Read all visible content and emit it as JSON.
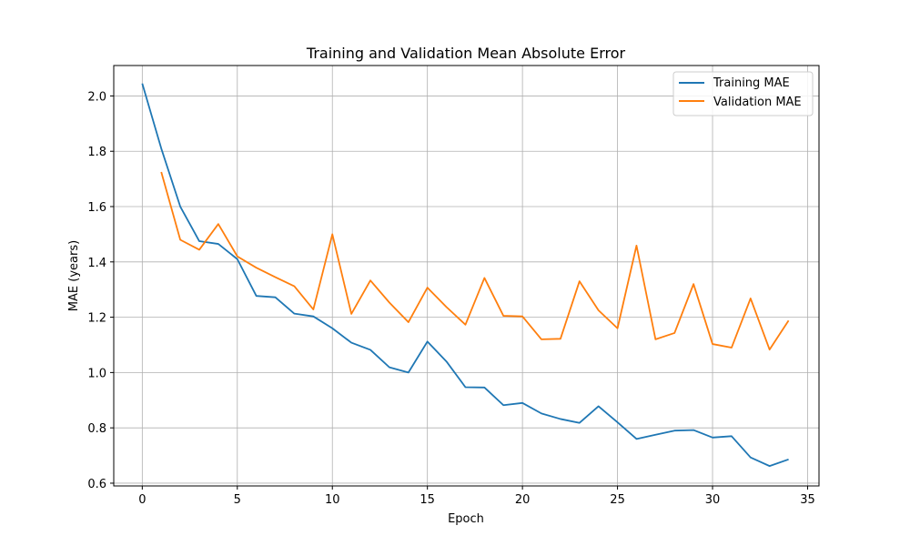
{
  "chart_data": {
    "type": "line",
    "title": "Training and Validation Mean Absolute Error",
    "xlabel": "Epoch",
    "ylabel": "MAE (years)",
    "xlim": [
      -1.5,
      35.6
    ],
    "ylim": [
      0.59,
      2.11
    ],
    "xticks": [
      0,
      5,
      10,
      15,
      20,
      25,
      30,
      35
    ],
    "yticks": [
      0.6,
      0.8,
      1.0,
      1.2,
      1.4,
      1.6,
      1.8,
      2.0
    ],
    "ytick_labels": [
      "0.6",
      "0.8",
      "1.0",
      "1.2",
      "1.4",
      "1.6",
      "1.8",
      "2.0"
    ],
    "grid": true,
    "legend_position": "top-right",
    "series": [
      {
        "name": "Training MAE",
        "color": "#1f77b4",
        "x": [
          0,
          1,
          2,
          3,
          4,
          5,
          6,
          7,
          8,
          9,
          10,
          11,
          12,
          13,
          14,
          15,
          16,
          17,
          18,
          19,
          20,
          21,
          22,
          23,
          24,
          25,
          26,
          27,
          28,
          29,
          30,
          31,
          32,
          33,
          34
        ],
        "values": [
          2.045,
          1.81,
          1.6,
          1.475,
          1.465,
          1.41,
          1.277,
          1.272,
          1.213,
          1.203,
          1.16,
          1.108,
          1.082,
          1.019,
          1.0,
          1.112,
          1.04,
          0.947,
          0.946,
          0.882,
          0.89,
          0.852,
          0.832,
          0.818,
          0.878,
          0.82,
          0.76,
          0.775,
          0.79,
          0.792,
          0.765,
          0.77,
          0.693,
          0.662,
          0.686
        ]
      },
      {
        "name": "Validation MAE",
        "color": "#ff7f0e",
        "x": [
          1,
          2,
          3,
          4,
          5,
          6,
          7,
          8,
          9,
          10,
          11,
          12,
          13,
          14,
          15,
          16,
          17,
          18,
          19,
          20,
          21,
          22,
          23,
          24,
          25,
          26,
          27,
          28,
          29,
          30,
          31,
          32,
          33,
          34
        ],
        "values": [
          1.725,
          1.48,
          1.444,
          1.537,
          1.42,
          1.379,
          1.345,
          1.312,
          1.228,
          1.5,
          1.212,
          1.333,
          1.253,
          1.182,
          1.307,
          1.237,
          1.173,
          1.342,
          1.205,
          1.203,
          1.12,
          1.122,
          1.33,
          1.225,
          1.16,
          1.459,
          1.12,
          1.143,
          1.32,
          1.103,
          1.09,
          1.268,
          1.083,
          1.188
        ]
      }
    ]
  }
}
